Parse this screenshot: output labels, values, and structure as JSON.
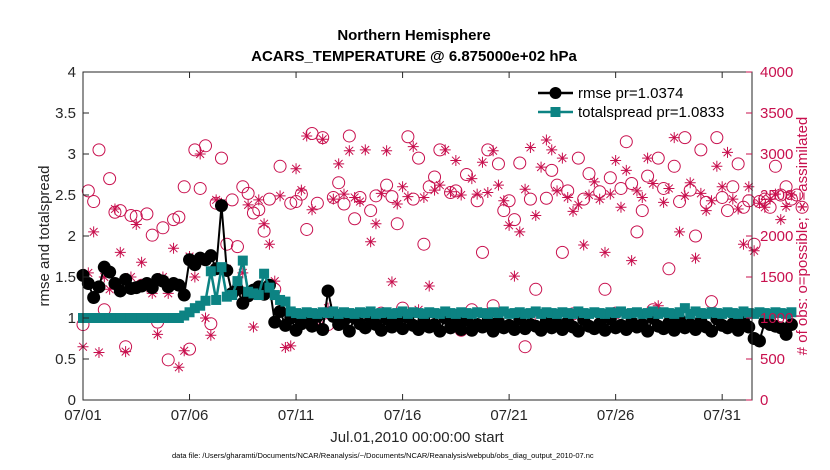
{
  "chart_data": {
    "type": "line",
    "title_line1": "Northern Hemisphere",
    "title_line2": "ACARS_TEMPERATURE @ 6.875000e+02 hPa",
    "xlabel": "Jul.01,2010 00:00:00 start",
    "ylabel_left": "rmse and totalspread",
    "ylabel_right": "# of obs: o=possible; ∗=assimilated",
    "footnote": "data file: /Users/gharamti/Documents/NCAR/Reanalysis/~/Documents/NCAR/Reanalysis/webpub/obs_diag_output_2010-07.nc",
    "xlim": [
      0,
      31.4
    ],
    "ylim_left": [
      0,
      4
    ],
    "ylim_right": [
      0,
      4000
    ],
    "x_ticks": [
      0,
      5,
      10,
      15,
      20,
      25,
      30
    ],
    "x_tick_labels": [
      "07/01",
      "07/06",
      "07/11",
      "07/16",
      "07/21",
      "07/26",
      "07/31"
    ],
    "y_ticks_left": [
      "0",
      "0.5",
      "1",
      "1.5",
      "2",
      "2.5",
      "3",
      "3.5",
      "4"
    ],
    "y_ticks_right": [
      "0",
      "500",
      "1000",
      "1500",
      "2000",
      "2500",
      "3000",
      "3500",
      "4000"
    ],
    "x_step_days": 0.25,
    "colors": {
      "rmse": "#000000",
      "totalspread": "#0c8383",
      "obs": "#c8104e",
      "axis": "#262626"
    },
    "legend": {
      "position": "top-right",
      "entries": [
        "rmse pr=1.0374",
        "totalspread pr=1.0833"
      ]
    },
    "series": [
      {
        "name": "rmse",
        "axis": "left",
        "marker": "circle",
        "values": [
          1.52,
          1.42,
          1.25,
          1.38,
          1.62,
          1.56,
          1.42,
          1.33,
          1.47,
          1.36,
          1.37,
          1.39,
          1.42,
          1.37,
          1.47,
          1.45,
          1.38,
          1.42,
          1.4,
          1.28,
          1.71,
          1.65,
          1.73,
          1.71,
          1.76,
          1.6,
          2.37,
          1.58,
          1.3,
          1.35,
          1.18,
          1.27,
          1.34,
          1.38,
          1.29,
          1.4,
          0.95,
          1.08,
          0.91,
          1.0,
          0.85,
          0.93,
          0.96,
          0.9,
          1.02,
          0.86,
          1.33,
          1.02,
          0.92,
          0.97,
          0.84,
          1.0,
          0.93,
          0.88,
          1.01,
          0.92,
          0.85,
          0.99,
          0.89,
          0.94,
          0.87,
          1.01,
          0.91,
          0.86,
          0.97,
          0.89,
          0.92,
          0.84,
          1.0,
          0.88,
          0.93,
          0.86,
          0.98,
          0.85,
          0.92,
          0.89,
          0.96,
          0.84,
          0.95,
          0.88,
          0.91,
          0.86,
          0.99,
          0.87,
          0.92,
          0.9,
          0.85,
          0.97,
          0.88,
          0.93,
          0.86,
          0.95,
          0.89,
          0.84,
          0.98,
          0.9,
          0.87,
          0.93,
          0.85,
          0.99,
          0.88,
          0.91,
          0.86,
          0.95,
          0.89,
          0.92,
          0.84,
          1.0,
          0.9,
          0.87,
          0.94,
          0.85,
          0.98,
          0.88,
          0.92,
          0.86,
          0.96,
          0.89,
          0.84,
          0.99,
          0.91,
          0.88,
          0.93,
          0.85,
          0.97,
          0.89,
          0.75,
          0.72,
          0.95,
          0.92,
          0.9,
          0.88,
          0.8,
          0.92
        ]
      },
      {
        "name": "totalspread",
        "axis": "left",
        "marker": "square",
        "values": [
          1.0,
          1.0,
          1.0,
          1.0,
          1.0,
          1.0,
          1.0,
          1.0,
          1.0,
          1.0,
          1.0,
          1.0,
          1.0,
          1.0,
          1.0,
          1.0,
          1.0,
          1.0,
          1.0,
          1.03,
          1.07,
          1.12,
          1.15,
          1.21,
          1.57,
          1.22,
          1.62,
          1.26,
          1.28,
          1.45,
          1.7,
          1.32,
          1.3,
          1.28,
          1.54,
          1.37,
          1.28,
          1.22,
          1.2,
          1.08,
          1.06,
          1.05,
          1.07,
          1.06,
          1.05,
          1.07,
          1.06,
          1.08,
          1.05,
          1.07,
          1.06,
          1.05,
          1.07,
          1.06,
          1.08,
          1.05,
          1.06,
          1.07,
          1.05,
          1.06,
          1.08,
          1.05,
          1.07,
          1.06,
          1.05,
          1.07,
          1.06,
          1.05,
          1.08,
          1.06,
          1.05,
          1.07,
          1.06,
          1.05,
          1.07,
          1.06,
          1.05,
          1.07,
          1.06,
          1.08,
          1.05,
          1.06,
          1.07,
          1.05,
          1.06,
          1.08,
          1.05,
          1.07,
          1.06,
          1.05,
          1.07,
          1.06,
          1.05,
          1.08,
          1.06,
          1.05,
          1.07,
          1.06,
          1.05,
          1.07,
          1.06,
          1.08,
          1.05,
          1.06,
          1.07,
          1.05,
          1.06,
          1.08,
          1.05,
          1.07,
          1.06,
          1.05,
          1.07,
          1.12,
          1.05,
          1.08,
          1.06,
          1.05,
          1.07,
          1.06,
          1.05,
          1.07,
          1.06,
          1.05,
          1.08,
          1.06,
          1.05,
          1.07,
          1.06,
          1.05,
          1.07,
          1.06,
          1.05,
          1.07
        ]
      },
      {
        "name": "obs_possible",
        "axis": "right",
        "marker": "open-circle",
        "values": [
          920,
          2550,
          2420,
          3050,
          1100,
          2700,
          2290,
          2310,
          650,
          2250,
          2240,
          1400,
          2270,
          2010,
          950,
          2100,
          490,
          2200,
          2230,
          2600,
          620,
          3050,
          2580,
          3100,
          930,
          2400,
          2950,
          1900,
          2440,
          1870,
          2600,
          2520,
          2280,
          2320,
          2060,
          2450,
          1350,
          2850,
          1000,
          2400,
          2420,
          2510,
          2080,
          3250,
          2400,
          3200,
          920,
          2470,
          2650,
          2390,
          3220,
          2210,
          2470,
          980,
          2310,
          2490,
          1060,
          2620,
          2480,
          2150,
          1120,
          3210,
          2450,
          2950,
          1900,
          2600,
          2720,
          3050,
          1010,
          2530,
          2550,
          850,
          2750,
          1100,
          2430,
          1800,
          3050,
          1150,
          2880,
          2310,
          2430,
          2200,
          2890,
          650,
          2450,
          1350,
          1000,
          2460,
          2800,
          2620,
          1800,
          2550,
          1050,
          2950,
          2450,
          2760,
          950,
          2540,
          1350,
          2710,
          1060,
          2580,
          3150,
          2640,
          2050,
          2310,
          2730,
          1100,
          2950,
          2580,
          1600,
          2850,
          2420,
          3200,
          2560,
          2000,
          3050,
          2410,
          1200,
          3200,
          2470,
          2310,
          2600,
          2880,
          2350,
          2430,
          1900,
          2420,
          2450,
          2350,
          2850,
          2500,
          2600,
          2450,
          2500,
          2350
        ]
      },
      {
        "name": "obs_assimilated",
        "axis": "right",
        "marker": "asterisk",
        "values": [
          650,
          1550,
          2050,
          580,
          1500,
          1350,
          2330,
          1800,
          590,
          1500,
          2140,
          1680,
          1380,
          1300,
          800,
          1500,
          1300,
          1850,
          400,
          600,
          1750,
          1500,
          3000,
          1000,
          790,
          2440,
          2400,
          1600,
          1300,
          1400,
          1550,
          2380,
          890,
          2440,
          2150,
          1900,
          1450,
          2490,
          640,
          660,
          2820,
          2560,
          3220,
          2320,
          910,
          3180,
          1120,
          2450,
          2880,
          2510,
          3040,
          2470,
          2420,
          3050,
          1930,
          2150,
          2520,
          3040,
          1440,
          2390,
          2600,
          2480,
          3090,
          1100,
          2470,
          1390,
          2560,
          2620,
          3050,
          2540,
          2920,
          2500,
          990,
          2700,
          2510,
          2900,
          2530,
          3040,
          2620,
          2430,
          2130,
          1510,
          2050,
          2570,
          3080,
          2250,
          2840,
          3170,
          3050,
          2550,
          2950,
          2470,
          2300,
          2380,
          1890,
          2500,
          2660,
          2450,
          1800,
          2510,
          2920,
          2350,
          2800,
          1700,
          2550,
          2470,
          2950,
          2640,
          1150,
          2410,
          2580,
          3200,
          2050,
          2490,
          2650,
          1730,
          2520,
          2310,
          2430,
          2850,
          2600,
          3020,
          2450,
          2330,
          1900,
          2600,
          1820,
          2400,
          2350,
          2450,
          2510,
          2200,
          2360,
          2500
        ]
      }
    ]
  }
}
